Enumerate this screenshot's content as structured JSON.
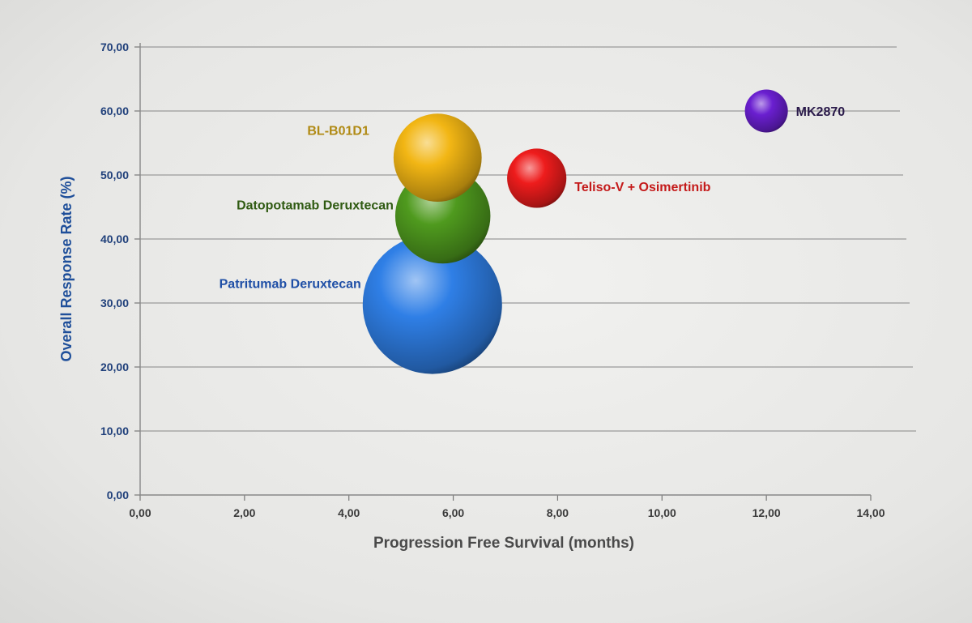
{
  "chart_data": {
    "type": "bubble",
    "xlabel": "Progression Free Survival (months)",
    "ylabel": "Overall Response Rate (%)",
    "xlim": [
      0,
      14
    ],
    "ylim": [
      0,
      70
    ],
    "xticks": [
      "0,00",
      "2,00",
      "4,00",
      "6,00",
      "8,00",
      "10,00",
      "12,00",
      "14,00"
    ],
    "yticks": [
      "0,00",
      "10,00",
      "20,00",
      "30,00",
      "40,00",
      "50,00",
      "60,00",
      "70,00"
    ],
    "grid": true,
    "legend": "none",
    "series": [
      {
        "name": "Patritumab Deruxtecan",
        "x": 5.6,
        "y": 29.8,
        "size": 10.5,
        "color": "#2f7fe6",
        "label_color": "#1f4fa6",
        "label_side": "left"
      },
      {
        "name": "Datopotamab Deruxtecan",
        "x": 5.8,
        "y": 43.6,
        "size": 4.9,
        "color": "#4f9a1e",
        "label_color": "#2f5a12",
        "label_side": "left"
      },
      {
        "name": "BL-B01D1",
        "x": 5.7,
        "y": 52.7,
        "size": 4.2,
        "color": "#f2b614",
        "label_color": "#b08a14",
        "label_side": "left"
      },
      {
        "name": "Teliso-V + Osimertinib",
        "x": 7.6,
        "y": 49.5,
        "size": 1.9,
        "color": "#ee1c1c",
        "label_color": "#c41a1a",
        "label_side": "right"
      },
      {
        "name": "MK2870",
        "x": 12.0,
        "y": 60.0,
        "size": 1.0,
        "color": "#6a1fd0",
        "label_color": "#2a1a4a",
        "label_side": "right"
      }
    ]
  }
}
